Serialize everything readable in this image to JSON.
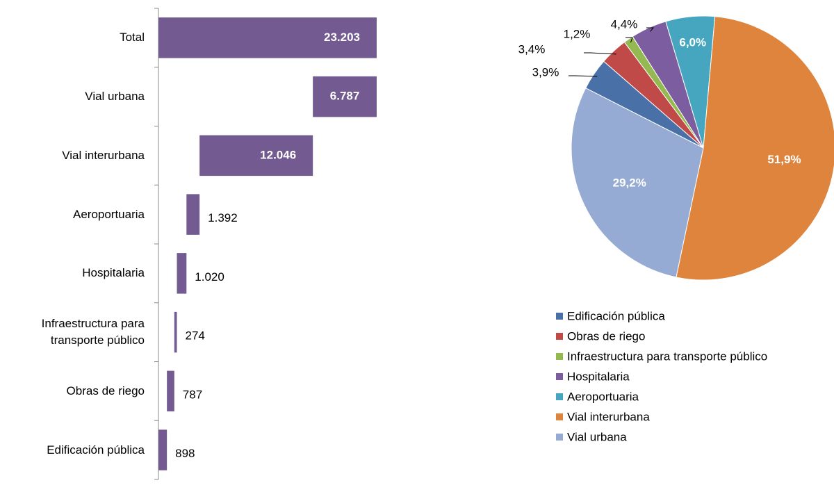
{
  "chart_data": [
    {
      "type": "waterfall",
      "categories": [
        "Total",
        "Vial urbana",
        "Vial interurbana",
        "Aeroportuaria",
        "Hospitalaria",
        "Infraestructura para transporte público",
        "Obras de riego",
        "Edificación pública"
      ],
      "values": [
        23203,
        6787,
        12046,
        1392,
        1020,
        274,
        787,
        898
      ],
      "value_labels": [
        "23.203",
        "6.787",
        "12.046",
        "1.392",
        "1.020",
        "274",
        "787",
        "898"
      ],
      "color": "#735a91"
    },
    {
      "type": "pie",
      "categories": [
        "Edificación pública",
        "Obras de riego",
        "Infraestructura para transporte público",
        "Hospitalaria",
        "Aeroportuaria",
        "Vial interurbana",
        "Vial urbana"
      ],
      "values": [
        3.9,
        3.4,
        1.2,
        4.4,
        6.0,
        51.9,
        29.2
      ],
      "value_labels": [
        "3,9%",
        "3,4%",
        "1,2%",
        "4,4%",
        "6,0%",
        "51,9%",
        "29,2%"
      ],
      "colors": [
        "#4a70a8",
        "#bf4a47",
        "#93b950",
        "#7c5d9f",
        "#46a6c0",
        "#df843c",
        "#95abd4"
      ]
    }
  ]
}
